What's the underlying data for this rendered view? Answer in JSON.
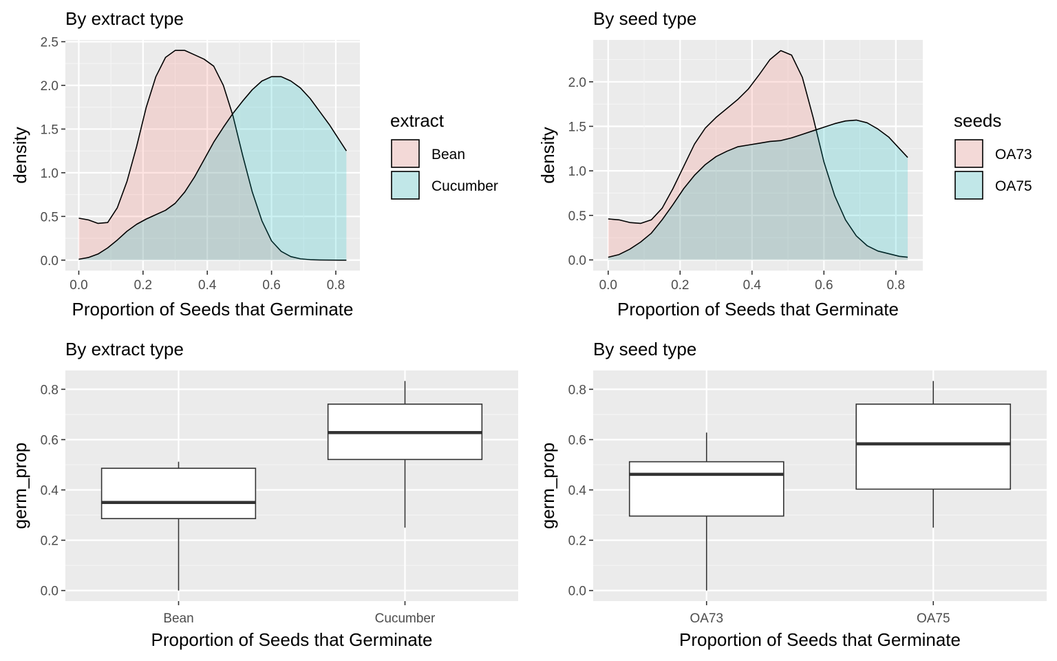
{
  "colors": {
    "panel_bg": "#EBEBEB",
    "grid_major": "#FFFFFF",
    "grid_minor": "#F5F5F5",
    "tick_text": "#4D4D4D",
    "fill_a": "#F8766D",
    "fill_b": "#00BFC4",
    "fill_alpha": 0.2,
    "outline": "#000000",
    "box_line": "#333333"
  },
  "chart_data": [
    {
      "id": "density-extract",
      "type": "area",
      "title": "By extract type",
      "xlabel": "Proportion of Seeds that Germinate",
      "ylabel": "density",
      "xlim": [
        -0.0417,
        0.875
      ],
      "ylim": [
        -0.12,
        2.52
      ],
      "xticks": [
        0.0,
        0.2,
        0.4,
        0.6,
        0.8
      ],
      "xtick_labels": [
        "0.0",
        "0.2",
        "0.4",
        "0.6",
        "0.8"
      ],
      "yticks": [
        0.0,
        0.5,
        1.0,
        1.5,
        2.0,
        2.5
      ],
      "ytick_labels": [
        "0.0",
        "0.5",
        "1.0",
        "1.5",
        "2.0",
        "2.5"
      ],
      "grid": true,
      "legend": {
        "title": "extract",
        "position": "right"
      },
      "series": [
        {
          "name": "Bean",
          "color": "#F8766D",
          "x": [
            0.0,
            0.03,
            0.06,
            0.09,
            0.12,
            0.15,
            0.18,
            0.21,
            0.24,
            0.27,
            0.3,
            0.33,
            0.36,
            0.39,
            0.42,
            0.45,
            0.48,
            0.51,
            0.54,
            0.57,
            0.6,
            0.63,
            0.66,
            0.69,
            0.72,
            0.75,
            0.78,
            0.81,
            0.833
          ],
          "y": [
            0.48,
            0.46,
            0.42,
            0.43,
            0.6,
            0.9,
            1.3,
            1.75,
            2.1,
            2.32,
            2.4,
            2.4,
            2.35,
            2.3,
            2.22,
            2.0,
            1.65,
            1.2,
            0.78,
            0.45,
            0.22,
            0.1,
            0.04,
            0.015,
            0.005,
            0.002,
            0.001,
            0.0,
            0.0
          ]
        },
        {
          "name": "Cucumber",
          "color": "#00BFC4",
          "x": [
            0.0,
            0.03,
            0.06,
            0.09,
            0.12,
            0.15,
            0.18,
            0.21,
            0.24,
            0.27,
            0.3,
            0.33,
            0.36,
            0.39,
            0.42,
            0.45,
            0.48,
            0.51,
            0.54,
            0.57,
            0.6,
            0.63,
            0.66,
            0.69,
            0.72,
            0.75,
            0.78,
            0.81,
            0.833
          ],
          "y": [
            0.01,
            0.03,
            0.07,
            0.14,
            0.23,
            0.33,
            0.41,
            0.47,
            0.52,
            0.57,
            0.65,
            0.78,
            0.95,
            1.15,
            1.35,
            1.52,
            1.68,
            1.82,
            1.95,
            2.05,
            2.1,
            2.1,
            2.05,
            1.97,
            1.85,
            1.7,
            1.55,
            1.38,
            1.25
          ]
        }
      ]
    },
    {
      "id": "density-seeds",
      "type": "area",
      "title": "By seed type",
      "xlabel": "Proportion of Seeds that Germinate",
      "ylabel": "density",
      "xlim": [
        -0.0417,
        0.875
      ],
      "ylim": [
        -0.12,
        2.47
      ],
      "xticks": [
        0.0,
        0.2,
        0.4,
        0.6,
        0.8
      ],
      "xtick_labels": [
        "0.0",
        "0.2",
        "0.4",
        "0.6",
        "0.8"
      ],
      "yticks": [
        0.0,
        0.5,
        1.0,
        1.5,
        2.0
      ],
      "ytick_labels": [
        "0.0",
        "0.5",
        "1.0",
        "1.5",
        "2.0"
      ],
      "grid": true,
      "legend": {
        "title": "seeds",
        "position": "right"
      },
      "series": [
        {
          "name": "OA73",
          "color": "#F8766D",
          "x": [
            0.0,
            0.03,
            0.06,
            0.09,
            0.12,
            0.15,
            0.18,
            0.21,
            0.24,
            0.27,
            0.3,
            0.33,
            0.36,
            0.39,
            0.42,
            0.45,
            0.48,
            0.51,
            0.54,
            0.57,
            0.6,
            0.63,
            0.66,
            0.69,
            0.72,
            0.75,
            0.78,
            0.81,
            0.833
          ],
          "y": [
            0.46,
            0.45,
            0.42,
            0.41,
            0.45,
            0.58,
            0.8,
            1.05,
            1.3,
            1.48,
            1.6,
            1.7,
            1.8,
            1.92,
            2.08,
            2.25,
            2.35,
            2.3,
            2.05,
            1.6,
            1.1,
            0.72,
            0.45,
            0.27,
            0.16,
            0.1,
            0.07,
            0.04,
            0.03
          ]
        },
        {
          "name": "OA75",
          "color": "#00BFC4",
          "x": [
            0.0,
            0.03,
            0.06,
            0.09,
            0.12,
            0.15,
            0.18,
            0.21,
            0.24,
            0.27,
            0.3,
            0.33,
            0.36,
            0.39,
            0.42,
            0.45,
            0.48,
            0.51,
            0.54,
            0.57,
            0.6,
            0.63,
            0.66,
            0.69,
            0.72,
            0.75,
            0.78,
            0.81,
            0.833
          ],
          "y": [
            0.03,
            0.06,
            0.12,
            0.2,
            0.3,
            0.45,
            0.62,
            0.8,
            0.95,
            1.07,
            1.16,
            1.22,
            1.27,
            1.29,
            1.31,
            1.33,
            1.34,
            1.37,
            1.41,
            1.45,
            1.49,
            1.53,
            1.56,
            1.57,
            1.54,
            1.47,
            1.38,
            1.25,
            1.15
          ]
        }
      ]
    },
    {
      "id": "box-extract",
      "type": "box",
      "title": "By extract type",
      "xlabel": "Proportion of Seeds that Germinate",
      "ylabel": "germ_prop",
      "categories": [
        "Bean",
        "Cucumber"
      ],
      "ylim": [
        -0.042,
        0.875
      ],
      "yticks": [
        0.0,
        0.2,
        0.4,
        0.6,
        0.8
      ],
      "ytick_labels": [
        "0.0",
        "0.2",
        "0.4",
        "0.6",
        "0.8"
      ],
      "grid": true,
      "boxes": [
        {
          "category": "Bean",
          "min": 0.0,
          "q1": 0.286,
          "median": 0.35,
          "q3": 0.486,
          "max": 0.512
        },
        {
          "category": "Cucumber",
          "min": 0.25,
          "q1": 0.521,
          "median": 0.628,
          "q3": 0.741,
          "max": 0.833
        }
      ]
    },
    {
      "id": "box-seeds",
      "type": "box",
      "title": "By seed type",
      "xlabel": "Proportion of Seeds that Germinate",
      "ylabel": "germ_prop",
      "categories": [
        "OA73",
        "OA75"
      ],
      "ylim": [
        -0.042,
        0.875
      ],
      "yticks": [
        0.0,
        0.2,
        0.4,
        0.6,
        0.8
      ],
      "ytick_labels": [
        "0.0",
        "0.2",
        "0.4",
        "0.6",
        "0.8"
      ],
      "grid": true,
      "boxes": [
        {
          "category": "OA73",
          "min": 0.0,
          "q1": 0.296,
          "median": 0.462,
          "q3": 0.512,
          "max": 0.628
        },
        {
          "category": "OA75",
          "min": 0.25,
          "q1": 0.403,
          "median": 0.583,
          "q3": 0.741,
          "max": 0.833
        }
      ]
    }
  ]
}
